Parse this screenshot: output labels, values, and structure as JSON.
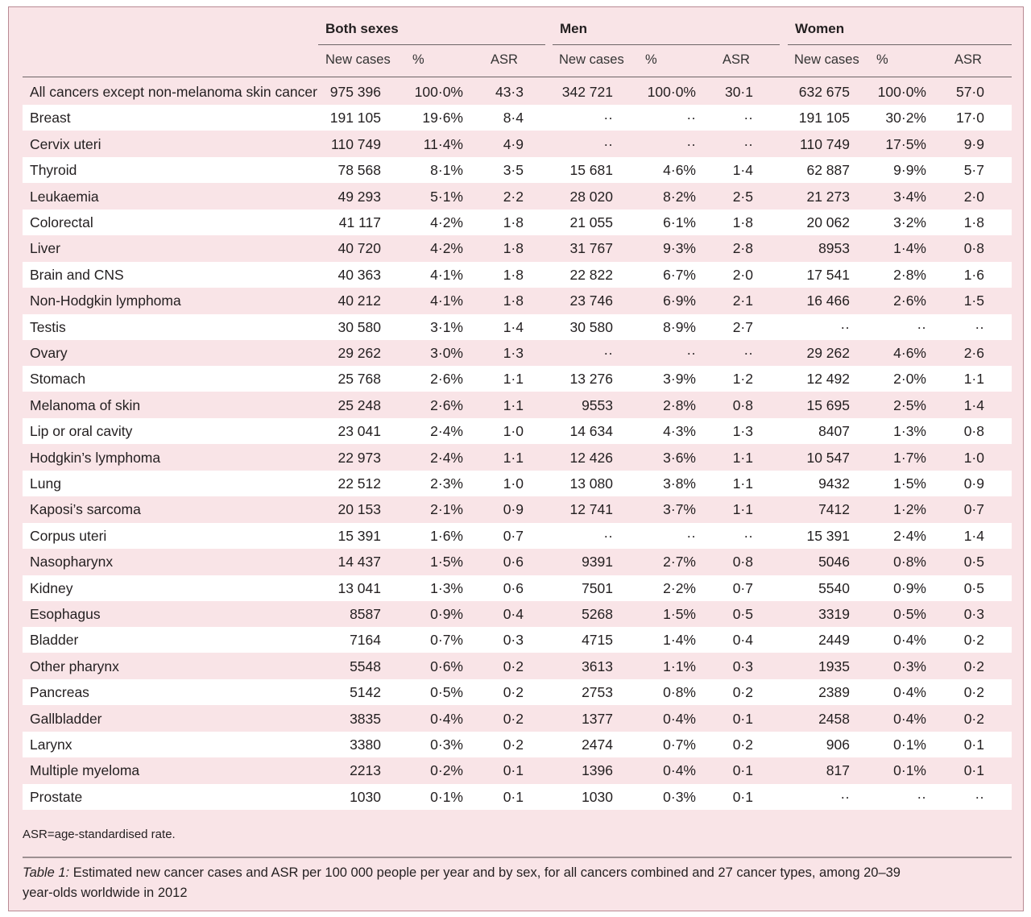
{
  "groups": [
    "Both sexes",
    "Men",
    "Women"
  ],
  "subheaders": [
    "New cases",
    "%",
    "ASR"
  ],
  "rows": [
    [
      "All cancers except non-melanoma skin cancer",
      "975 396",
      "100·0%",
      "43·3",
      "342 721",
      "100·0%",
      "30·1",
      "632 675",
      "100·0%",
      "57·0"
    ],
    [
      "Breast",
      "191 105",
      "19·6%",
      "8·4",
      "··",
      "··",
      "··",
      "191 105",
      "30·2%",
      "17·0"
    ],
    [
      "Cervix uteri",
      "110 749",
      "11·4%",
      "4·9",
      "··",
      "··",
      "··",
      "110 749",
      "17·5%",
      "9·9"
    ],
    [
      "Thyroid",
      "78 568",
      "8·1%",
      "3·5",
      "15 681",
      "4·6%",
      "1·4",
      "62 887",
      "9·9%",
      "5·7"
    ],
    [
      "Leukaemia",
      "49 293",
      "5·1%",
      "2·2",
      "28 020",
      "8·2%",
      "2·5",
      "21 273",
      "3·4%",
      "2·0"
    ],
    [
      "Colorectal",
      "41 117",
      "4·2%",
      "1·8",
      "21 055",
      "6·1%",
      "1·8",
      "20 062",
      "3·2%",
      "1·8"
    ],
    [
      "Liver",
      "40 720",
      "4·2%",
      "1·8",
      "31 767",
      "9·3%",
      "2·8",
      "8953",
      "1·4%",
      "0·8"
    ],
    [
      "Brain and CNS",
      "40 363",
      "4·1%",
      "1·8",
      "22 822",
      "6·7%",
      "2·0",
      "17 541",
      "2·8%",
      "1·6"
    ],
    [
      "Non-Hodgkin lymphoma",
      "40 212",
      "4·1%",
      "1·8",
      "23 746",
      "6·9%",
      "2·1",
      "16 466",
      "2·6%",
      "1·5"
    ],
    [
      "Testis",
      "30 580",
      "3·1%",
      "1·4",
      "30 580",
      "8·9%",
      "2·7",
      "··",
      "··",
      "··"
    ],
    [
      "Ovary",
      "29 262",
      "3·0%",
      "1·3",
      "··",
      "··",
      "··",
      "29 262",
      "4·6%",
      "2·6"
    ],
    [
      "Stomach",
      "25 768",
      "2·6%",
      "1·1",
      "13 276",
      "3·9%",
      "1·2",
      "12 492",
      "2·0%",
      "1·1"
    ],
    [
      "Melanoma of skin",
      "25 248",
      "2·6%",
      "1·1",
      "9553",
      "2·8%",
      "0·8",
      "15 695",
      "2·5%",
      "1·4"
    ],
    [
      "Lip or oral cavity",
      "23 041",
      "2·4%",
      "1·0",
      "14 634",
      "4·3%",
      "1·3",
      "8407",
      "1·3%",
      "0·8"
    ],
    [
      "Hodgkin’s lymphoma",
      "22 973",
      "2·4%",
      "1·1",
      "12 426",
      "3·6%",
      "1·1",
      "10 547",
      "1·7%",
      "1·0"
    ],
    [
      "Lung",
      "22 512",
      "2·3%",
      "1·0",
      "13 080",
      "3·8%",
      "1·1",
      "9432",
      "1·5%",
      "0·9"
    ],
    [
      "Kaposi’s sarcoma",
      "20 153",
      "2·1%",
      "0·9",
      "12 741",
      "3·7%",
      "1·1",
      "7412",
      "1·2%",
      "0·7"
    ],
    [
      "Corpus uteri",
      "15 391",
      "1·6%",
      "0·7",
      "··",
      "··",
      "··",
      "15 391",
      "2·4%",
      "1·4"
    ],
    [
      "Nasopharynx",
      "14 437",
      "1·5%",
      "0·6",
      "9391",
      "2·7%",
      "0·8",
      "5046",
      "0·8%",
      "0·5"
    ],
    [
      "Kidney",
      "13 041",
      "1·3%",
      "0·6",
      "7501",
      "2·2%",
      "0·7",
      "5540",
      "0·9%",
      "0·5"
    ],
    [
      "Esophagus",
      "8587",
      "0·9%",
      "0·4",
      "5268",
      "1·5%",
      "0·5",
      "3319",
      "0·5%",
      "0·3"
    ],
    [
      "Bladder",
      "7164",
      "0·7%",
      "0·3",
      "4715",
      "1·4%",
      "0·4",
      "2449",
      "0·4%",
      "0·2"
    ],
    [
      "Other pharynx",
      "5548",
      "0·6%",
      "0·2",
      "3613",
      "1·1%",
      "0·3",
      "1935",
      "0·3%",
      "0·2"
    ],
    [
      "Pancreas",
      "5142",
      "0·5%",
      "0·2",
      "2753",
      "0·8%",
      "0·2",
      "2389",
      "0·4%",
      "0·2"
    ],
    [
      "Gallbladder",
      "3835",
      "0·4%",
      "0·2",
      "1377",
      "0·4%",
      "0·1",
      "2458",
      "0·4%",
      "0·2"
    ],
    [
      "Larynx",
      "3380",
      "0·3%",
      "0·2",
      "2474",
      "0·7%",
      "0·2",
      "906",
      "0·1%",
      "0·1"
    ],
    [
      "Multiple myeloma",
      "2213",
      "0·2%",
      "0·1",
      "1396",
      "0·4%",
      "0·1",
      "817",
      "0·1%",
      "0·1"
    ],
    [
      "Prostate",
      "1030",
      "0·1%",
      "0·1",
      "1030",
      "0·3%",
      "0·1",
      "··",
      "··",
      "··"
    ]
  ],
  "footnote": "ASR=age-standardised rate.",
  "caption": {
    "label": "Table 1:",
    "text": " Estimated new cancer cases and ASR per 100 000 people per year and by sex, for all cancers combined and 27 cancer types, among 20–39 year-olds worldwide in 2012"
  },
  "colors": {
    "background": "#f9e4e7",
    "row_alt": "#ffffff"
  }
}
